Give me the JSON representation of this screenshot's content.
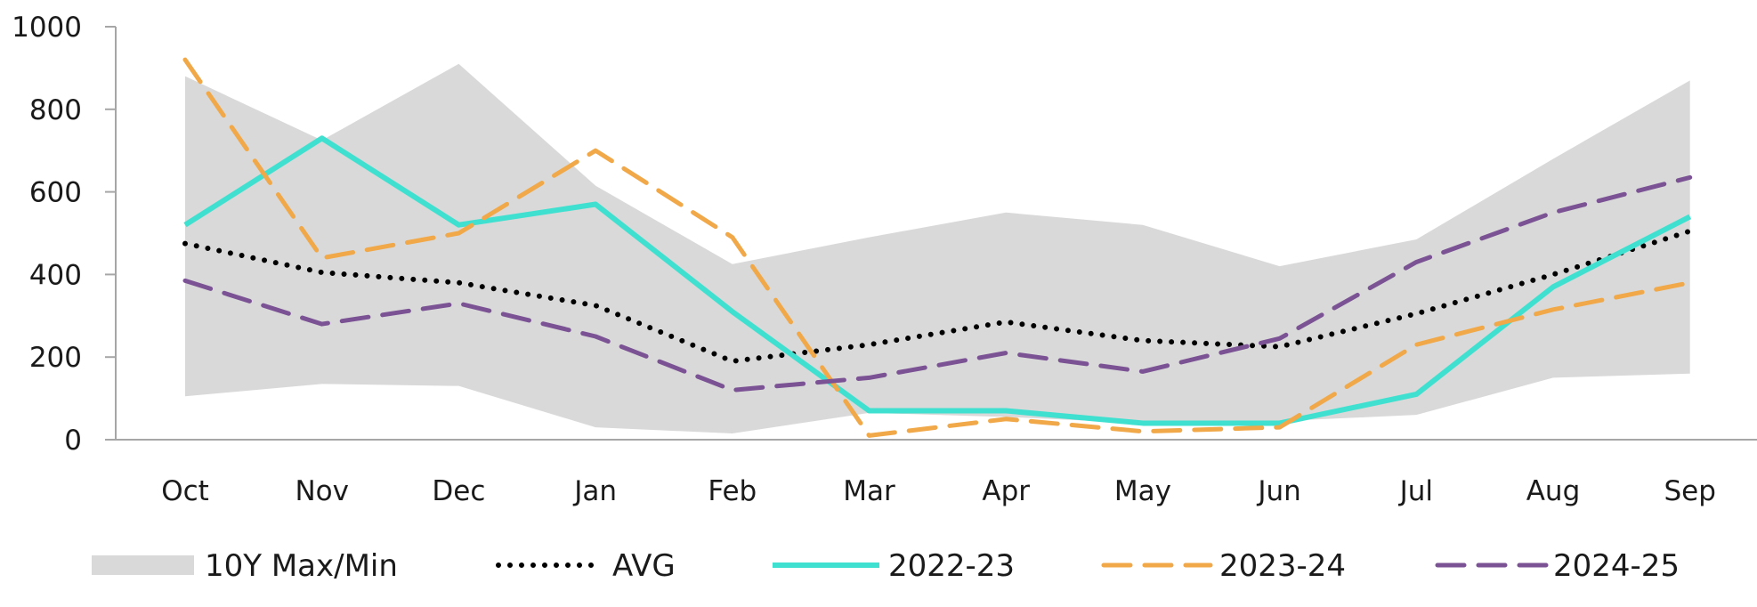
{
  "chart_data": {
    "type": "line",
    "title": "",
    "xlabel": "",
    "ylabel": "",
    "categories": [
      "Oct",
      "Nov",
      "Dec",
      "Jan",
      "Feb",
      "Mar",
      "Apr",
      "May",
      "Jun",
      "Jul",
      "Aug",
      "Sep"
    ],
    "ylim": [
      0,
      1000
    ],
    "yticks": [
      0,
      200,
      400,
      600,
      800,
      1000
    ],
    "grid": false,
    "legend_position": "bottom",
    "band": {
      "name": "10Y Max/Min",
      "color": "#d9d9d9",
      "max": [
        880,
        725,
        910,
        615,
        425,
        490,
        550,
        520,
        420,
        485,
        680,
        870
      ],
      "min": [
        105,
        135,
        130,
        30,
        15,
        65,
        55,
        40,
        45,
        60,
        150,
        160
      ]
    },
    "series": [
      {
        "name": "AVG",
        "style": "dotted",
        "color": "#000000",
        "values": [
          475,
          405,
          380,
          325,
          190,
          230,
          285,
          240,
          225,
          305,
          400,
          505
        ]
      },
      {
        "name": "2022-23",
        "style": "solid",
        "color": "#40e0d0",
        "values": [
          520,
          730,
          520,
          570,
          310,
          70,
          70,
          40,
          40,
          110,
          370,
          540
        ]
      },
      {
        "name": "2023-24",
        "style": "dashed",
        "color": "#f0a848",
        "values": [
          920,
          440,
          500,
          700,
          490,
          10,
          50,
          20,
          30,
          230,
          315,
          380
        ]
      },
      {
        "name": "2024-25",
        "style": "dashed",
        "color": "#7b5294",
        "values": [
          385,
          280,
          330,
          250,
          120,
          150,
          210,
          165,
          245,
          430,
          550,
          635
        ]
      }
    ]
  }
}
